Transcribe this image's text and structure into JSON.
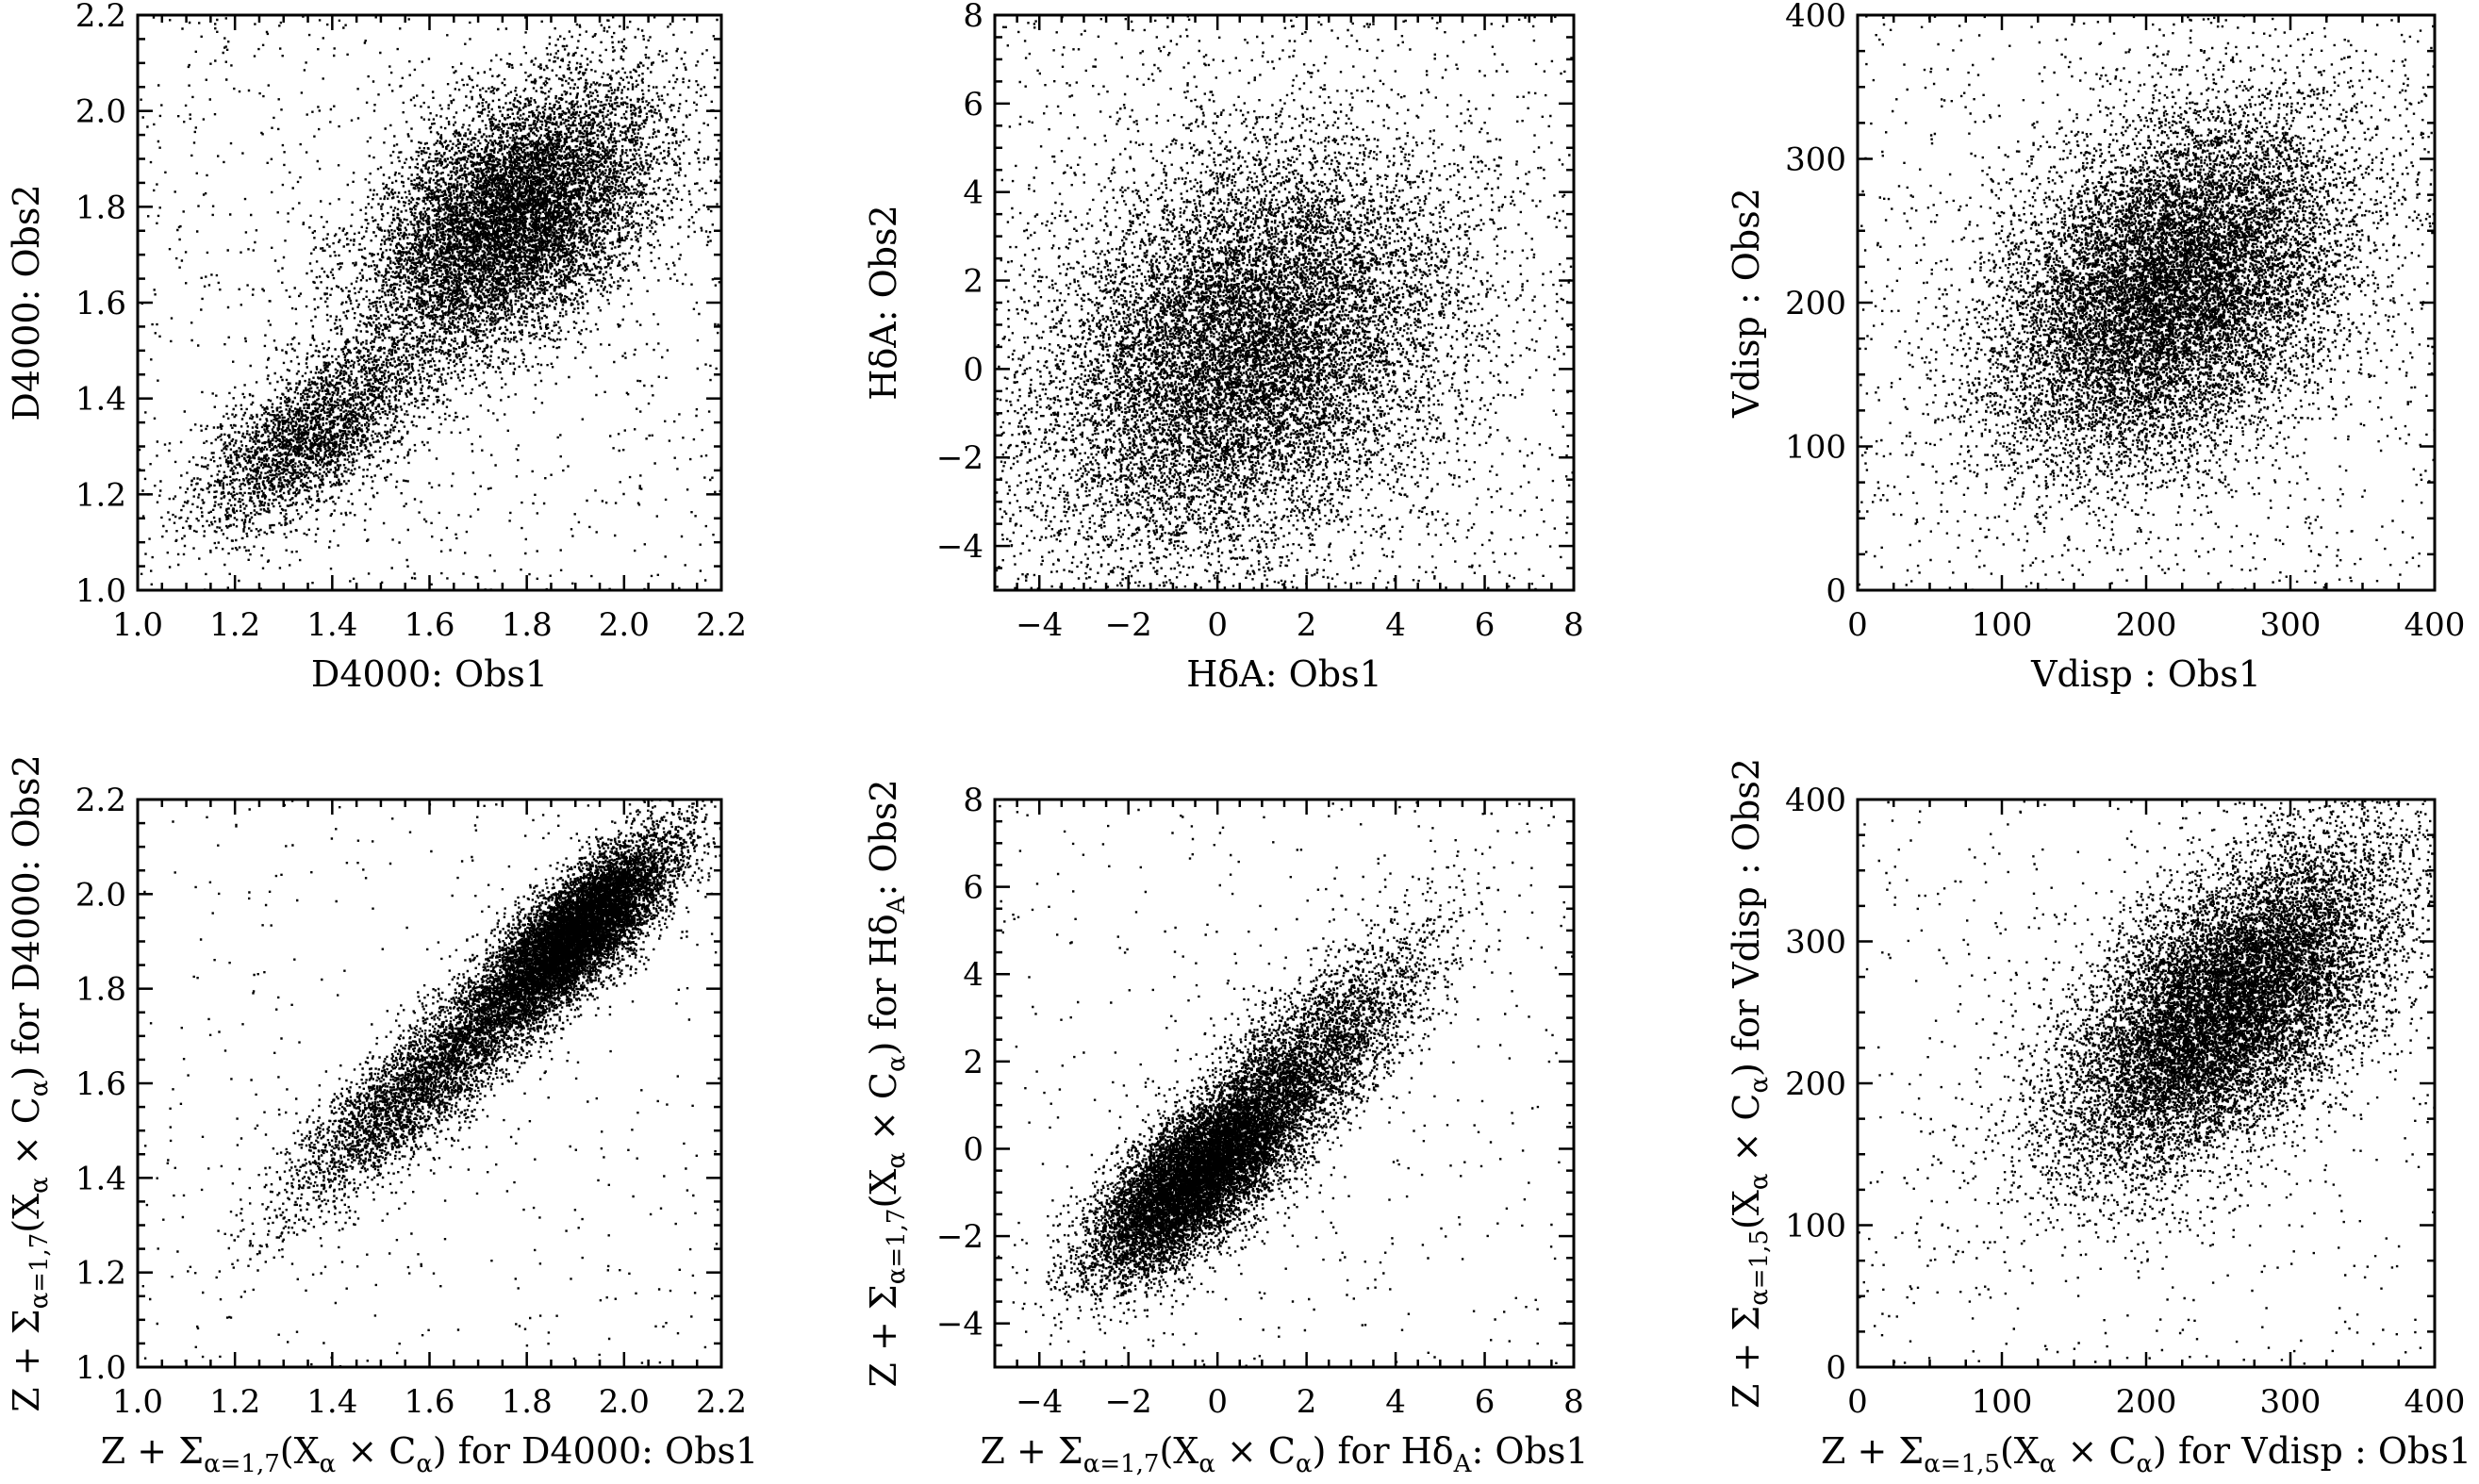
{
  "chart_data": [
    {
      "type": "scatter",
      "xlabel": "D4000: Obs1",
      "ylabel": "D4000: Obs2",
      "xlim": [
        1.0,
        2.2
      ],
      "ylim": [
        1.0,
        2.2
      ],
      "xticks": [
        1.0,
        1.2,
        1.4,
        1.6,
        1.8,
        2.0,
        2.2
      ],
      "yticks": [
        1.0,
        1.2,
        1.4,
        1.6,
        1.8,
        2.0,
        2.2
      ],
      "xtick_labels": [
        "1.0",
        "1.2",
        "1.4",
        "1.6",
        "1.8",
        "2.0",
        "2.2"
      ],
      "ytick_labels": [
        "1.0",
        "1.2",
        "1.4",
        "1.6",
        "1.8",
        "2.0",
        "2.2"
      ],
      "grid": false,
      "marker_color": "#000000",
      "distribution": {
        "n_points": 14000,
        "background_fraction": 0.07,
        "components": [
          {
            "weight": 0.23,
            "mean": [
              1.36,
              1.33
            ],
            "sd": [
              0.12,
              0.1
            ],
            "corr": 0.65
          },
          {
            "weight": 0.77,
            "mean": [
              1.77,
              1.78
            ],
            "sd": [
              0.15,
              0.14
            ],
            "corr": 0.45
          }
        ]
      }
    },
    {
      "type": "scatter",
      "xlabel": "HδA: Obs1",
      "ylabel": "HδA: Obs2",
      "xlim": [
        -5,
        8
      ],
      "ylim": [
        -5,
        8
      ],
      "xticks": [
        -4,
        -2,
        0,
        2,
        4,
        6,
        8
      ],
      "yticks": [
        -4,
        -2,
        0,
        2,
        4,
        6,
        8
      ],
      "xtick_labels": [
        "−4",
        "−2",
        "0",
        "2",
        "4",
        "6",
        "8"
      ],
      "ytick_labels": [
        "−4",
        "−2",
        "0",
        "2",
        "4",
        "6",
        "8"
      ],
      "grid": false,
      "marker_color": "#000000",
      "distribution": {
        "n_points": 14000,
        "background_fraction": 0.1,
        "components": [
          {
            "weight": 1.0,
            "mean": [
              0.6,
              0.4
            ],
            "sd": [
              2.3,
              2.3
            ],
            "corr": 0.28
          }
        ]
      }
    },
    {
      "type": "scatter",
      "xlabel": "Vdisp : Obs1",
      "ylabel": "Vdisp : Obs2",
      "xlim": [
        0,
        400
      ],
      "ylim": [
        0,
        400
      ],
      "xticks": [
        0,
        100,
        200,
        300,
        400
      ],
      "yticks": [
        0,
        100,
        200,
        300,
        400
      ],
      "xtick_labels": [
        "0",
        "100",
        "200",
        "300",
        "400"
      ],
      "ytick_labels": [
        "0",
        "100",
        "200",
        "300",
        "400"
      ],
      "grid": false,
      "marker_color": "#000000",
      "distribution": {
        "n_points": 14000,
        "background_fraction": 0.08,
        "components": [
          {
            "weight": 1.0,
            "mean": [
              215,
              210
            ],
            "sd": [
              62,
              62
            ],
            "corr": 0.35
          }
        ]
      }
    },
    {
      "type": "scatter",
      "xlabel": "Z + Σ_{α=1,7}(X_α × C_α) for D4000: Obs1",
      "ylabel": "Z + Σ_{α=1,7}(X_α × C_α) for D4000: Obs2",
      "xlim": [
        1.0,
        2.2
      ],
      "ylim": [
        1.0,
        2.2
      ],
      "xticks": [
        1.0,
        1.2,
        1.4,
        1.6,
        1.8,
        2.0,
        2.2
      ],
      "yticks": [
        1.0,
        1.2,
        1.4,
        1.6,
        1.8,
        2.0,
        2.2
      ],
      "xtick_labels": [
        "1.0",
        "1.2",
        "1.4",
        "1.6",
        "1.8",
        "2.0",
        "2.2"
      ],
      "ytick_labels": [
        "1.0",
        "1.2",
        "1.4",
        "1.6",
        "1.8",
        "2.0",
        "2.2"
      ],
      "grid": false,
      "marker_color": "#000000",
      "distribution": {
        "n_points": 14000,
        "background_fraction": 0.03,
        "components": [
          {
            "weight": 0.3,
            "mean": [
              1.6,
              1.62
            ],
            "sd": [
              0.15,
              0.14
            ],
            "corr": 0.88
          },
          {
            "weight": 0.7,
            "mean": [
              1.9,
              1.92
            ],
            "sd": [
              0.1,
              0.1
            ],
            "corr": 0.8
          }
        ]
      }
    },
    {
      "type": "scatter",
      "xlabel": "Z + Σ_{α=1,7}(X_α × C_α) for Hδ_A: Obs1",
      "ylabel": "Z + Σ_{α=1,7}(X_α × C_α) for Hδ_A: Obs2",
      "xlim": [
        -5,
        8
      ],
      "ylim": [
        -5,
        8
      ],
      "xticks": [
        -4,
        -2,
        0,
        2,
        4,
        6,
        8
      ],
      "yticks": [
        -4,
        -2,
        0,
        2,
        4,
        6,
        8
      ],
      "xtick_labels": [
        "−4",
        "−2",
        "0",
        "2",
        "4",
        "6",
        "8"
      ],
      "ytick_labels": [
        "−4",
        "−2",
        "0",
        "2",
        "4",
        "6",
        "8"
      ],
      "grid": false,
      "marker_color": "#000000",
      "distribution": {
        "n_points": 14000,
        "background_fraction": 0.03,
        "components": [
          {
            "weight": 0.65,
            "mean": [
              -0.6,
              -0.7
            ],
            "sd": [
              1.1,
              1.1
            ],
            "corr": 0.7
          },
          {
            "weight": 0.35,
            "mean": [
              1.6,
              1.5
            ],
            "sd": [
              1.6,
              1.7
            ],
            "corr": 0.82
          }
        ]
      }
    },
    {
      "type": "scatter",
      "xlabel": "Z + Σ_{α=1,5}(X_α × C_α) for Vdisp : Obs1",
      "ylabel": "Z + Σ_{α=1,5}(X_α × C_α) for Vdisp : Obs2",
      "xlim": [
        0,
        400
      ],
      "ylim": [
        0,
        400
      ],
      "xticks": [
        0,
        100,
        200,
        300,
        400
      ],
      "yticks": [
        0,
        100,
        200,
        300,
        400
      ],
      "xtick_labels": [
        "0",
        "100",
        "200",
        "300",
        "400"
      ],
      "ytick_labels": [
        "0",
        "100",
        "200",
        "300",
        "400"
      ],
      "grid": false,
      "marker_color": "#000000",
      "distribution": {
        "n_points": 14000,
        "background_fraction": 0.04,
        "components": [
          {
            "weight": 1.0,
            "mean": [
              255,
              255
            ],
            "sd": [
              58,
              58
            ],
            "corr": 0.6
          }
        ]
      }
    }
  ]
}
